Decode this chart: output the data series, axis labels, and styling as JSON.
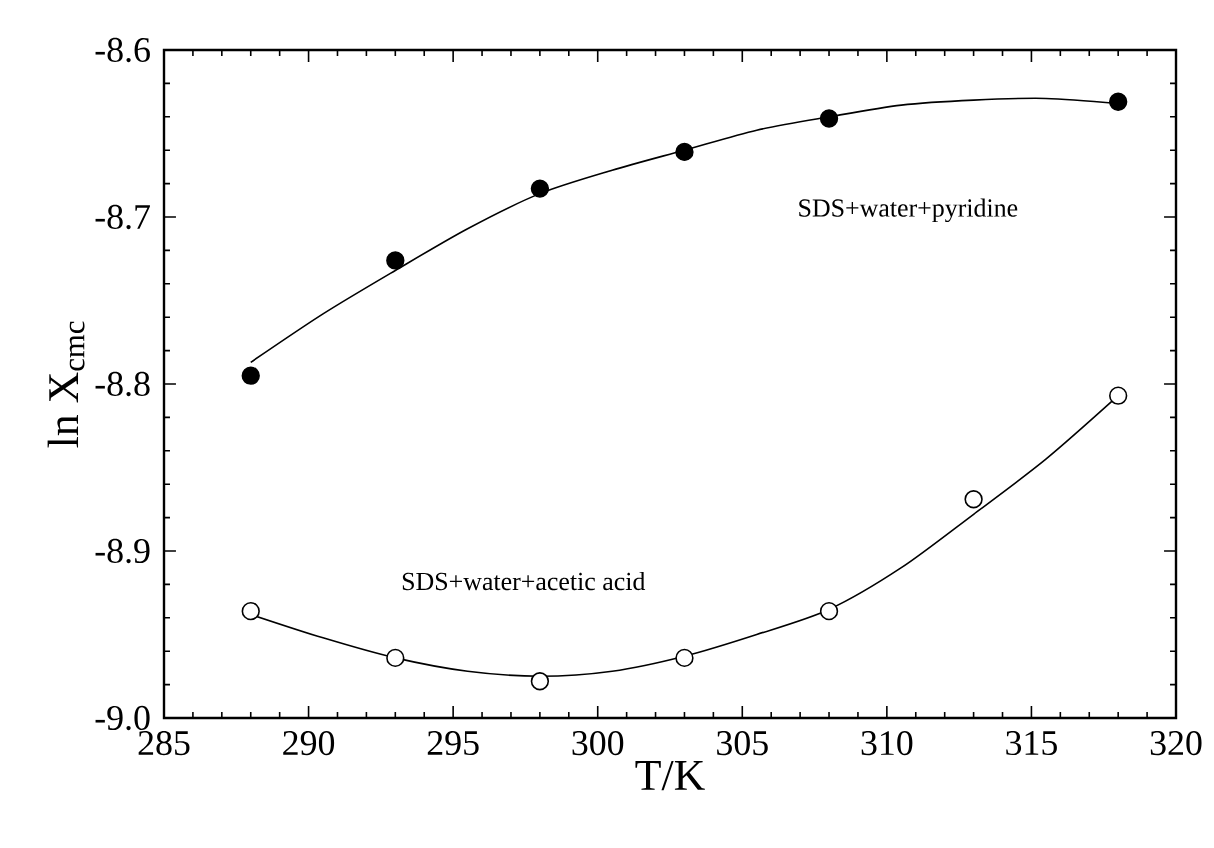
{
  "chart_data": {
    "type": "scatter",
    "xlabel": "T/K",
    "ylabel": "ln X$_{cmc}$",
    "xlim": [
      285,
      320
    ],
    "xticks": [
      285,
      290,
      295,
      300,
      305,
      310,
      315,
      320
    ],
    "ylim": [
      -9.0,
      -8.6
    ],
    "yticks": [
      {
        "value": -9.0,
        "label": "-9.0"
      },
      {
        "value": -8.9,
        "label": "-8.9"
      },
      {
        "value": -8.8,
        "label": "-8.8"
      },
      {
        "value": -8.7,
        "label": "-8.7"
      },
      {
        "value": -8.6,
        "label": "-8.6"
      }
    ],
    "grid": false,
    "marker": "circle",
    "series": [
      {
        "color": "#000000",
        "x": [
          288,
          293,
          298,
          303,
          308,
          318
        ],
        "values": [
          -8.795,
          -8.726,
          -8.683,
          -8.661,
          -8.641,
          -8.631
        ]
      },
      {
        "color": "#000000",
        "x": [
          288,
          293,
          298,
          303,
          308,
          313,
          318
        ],
        "values": [
          -8.936,
          -8.964,
          -8.978,
          -8.964,
          -8.936,
          -8.869,
          -8.807
        ]
      },
      {
        "type": "line",
        "color": "#000000",
        "marker": "none",
        "x": [
          288,
          290.5,
          293,
          295.5,
          298,
          300.5,
          303,
          305.5,
          308,
          310.5,
          313,
          315.5,
          318
        ],
        "values": [
          -8.787,
          -8.758,
          -8.732,
          -8.707,
          -8.686,
          -8.672,
          -8.66,
          -8.648,
          -8.64,
          -8.633,
          -8.63,
          -8.629,
          -8.632
        ]
      },
      {
        "type": "line",
        "color": "#000000",
        "marker": "none",
        "x": [
          288,
          290.5,
          293,
          295.5,
          298,
          300.5,
          303,
          305.5,
          308,
          310.5,
          313,
          315.5,
          318
        ],
        "values": [
          -8.938,
          -8.952,
          -8.964,
          -8.972,
          -8.975,
          -8.972,
          -8.963,
          -8.95,
          -8.935,
          -8.91,
          -8.878,
          -8.845,
          -8.807
        ]
      }
    ],
    "annotations": [
      "SDS+water+pyridine",
      "SDS+water+acetic acid"
    ]
  }
}
